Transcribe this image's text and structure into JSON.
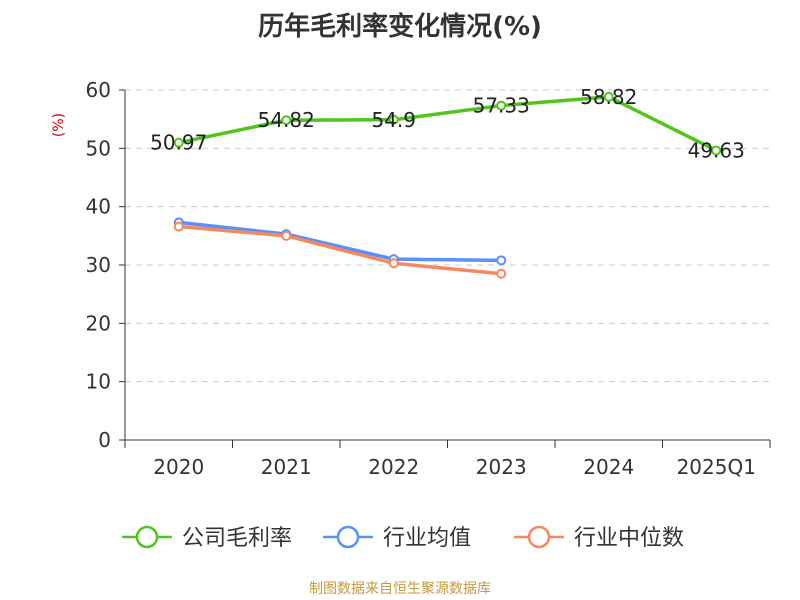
{
  "chart_data": {
    "type": "line",
    "title": "历年毛利率变化情况(%)",
    "ylabel": "(%)",
    "xlabel": "",
    "categories": [
      "2020",
      "2021",
      "2022",
      "2023",
      "2024",
      "2025Q1"
    ],
    "ylim": [
      0,
      60
    ],
    "yticks": [
      0,
      10,
      20,
      30,
      40,
      50,
      60
    ],
    "grid": true,
    "legend_position": "bottom",
    "series": [
      {
        "name": "公司毛利率",
        "color": "#52c41a",
        "values": [
          50.97,
          54.82,
          54.9,
          57.33,
          58.82,
          49.63
        ],
        "labels": [
          "50.97",
          "54.82",
          "54.9",
          "57.33",
          "58.82",
          "49.63"
        ]
      },
      {
        "name": "行业均值",
        "color": "#5b8ff9",
        "values": [
          37.3,
          35.3,
          31.0,
          30.8,
          null,
          null
        ]
      },
      {
        "name": "行业中位数",
        "color": "#f4895f",
        "values": [
          36.6,
          35.0,
          30.3,
          28.5,
          null,
          null
        ]
      }
    ]
  },
  "footer": {
    "source": "制图数据来自恒生聚源数据库"
  }
}
